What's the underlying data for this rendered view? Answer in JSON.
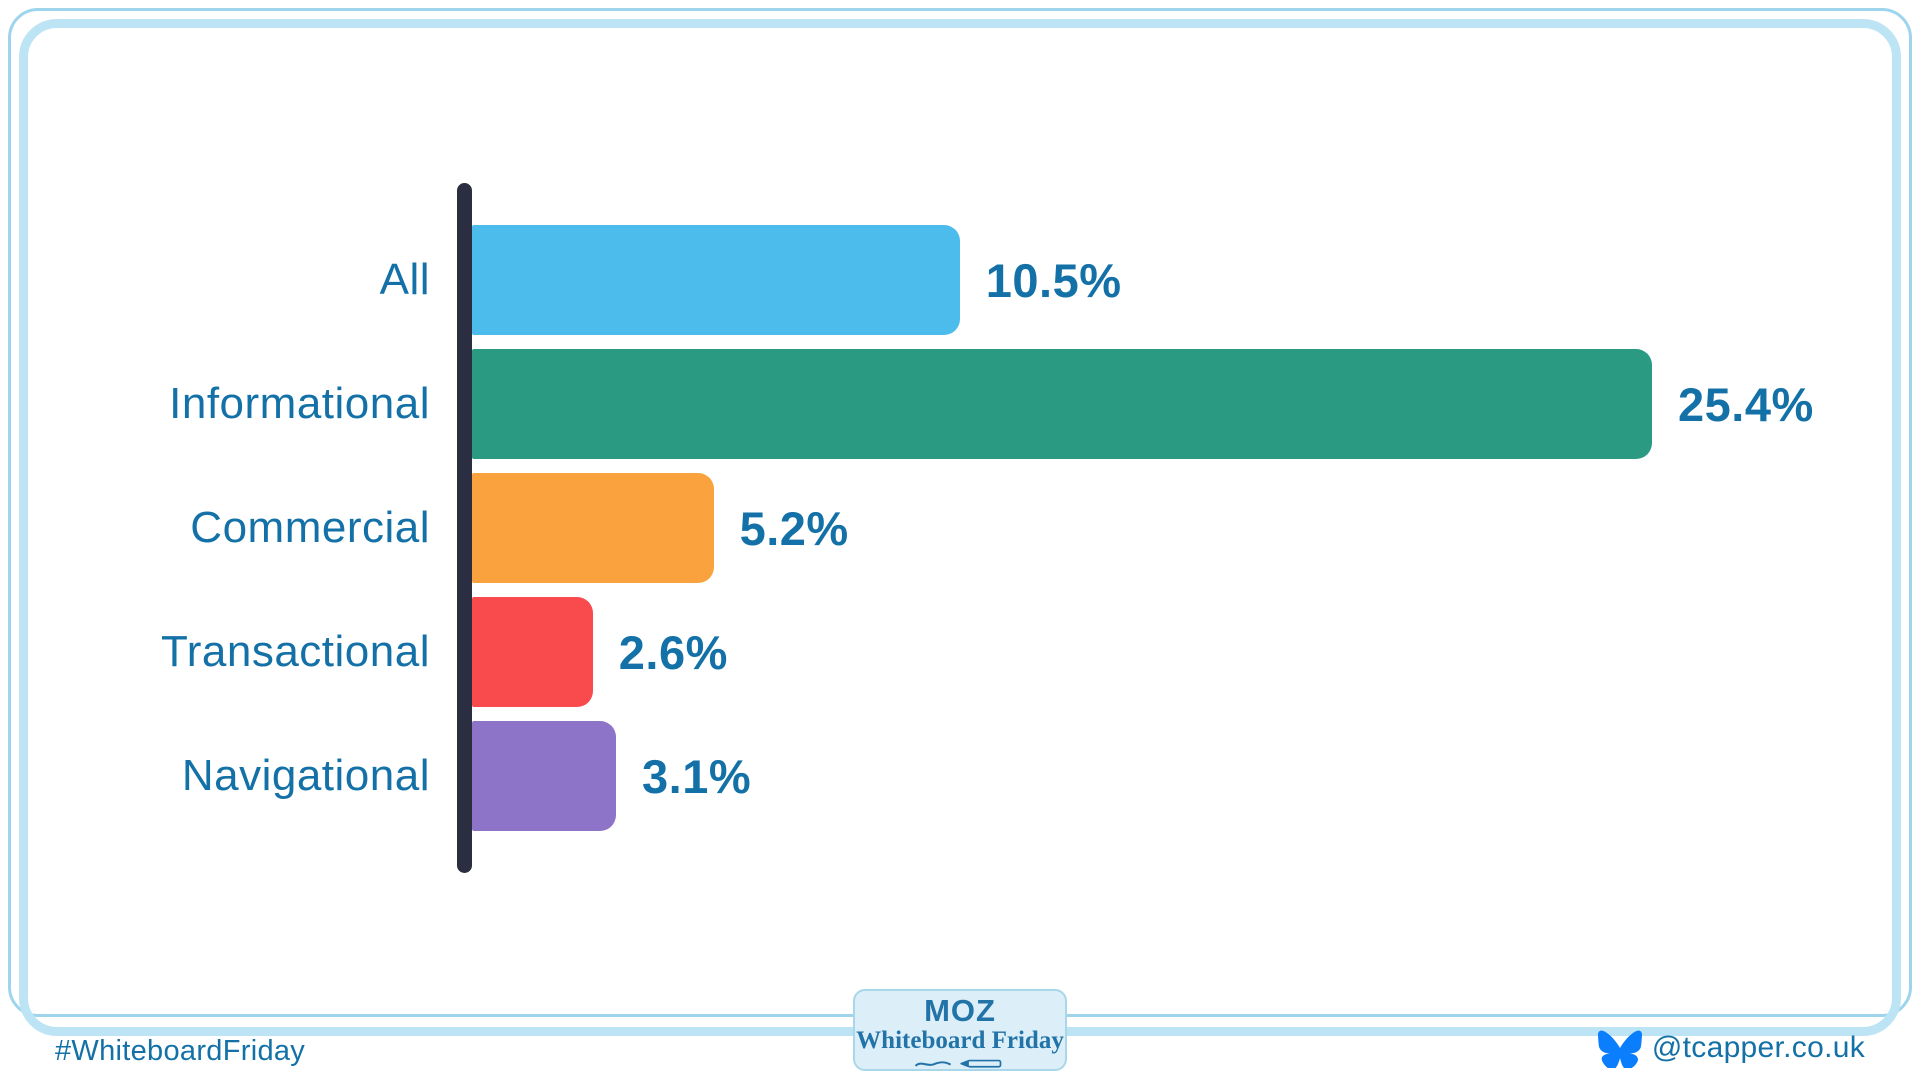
{
  "chart_data": {
    "type": "bar",
    "orientation": "horizontal",
    "title": "",
    "xlabel": "",
    "ylabel": "",
    "categories": [
      "All",
      "Informational",
      "Commercial",
      "Transactional",
      "Navigational"
    ],
    "values": [
      10.5,
      25.4,
      5.2,
      2.6,
      3.1
    ],
    "value_labels": [
      "10.5%",
      "25.4%",
      "5.2%",
      "2.6%",
      "3.1%"
    ],
    "bar_colors": [
      "#4cbcec",
      "#2a9a83",
      "#f9a23e",
      "#f94a4e",
      "#8d74c9"
    ],
    "xlim": [
      0,
      25.4
    ],
    "grid": false,
    "legend": false,
    "axis_color": "#2a2e40",
    "label_color": "#1371a7"
  },
  "frame": {
    "outer_color": "#9ed5ec",
    "inner_color": "#bce4f5"
  },
  "footer": {
    "hashtag": "#WhiteboardFriday",
    "handle": "@tcapper.co.uk",
    "text_color": "#1371a7",
    "bluesky_color": "#0b7efe"
  },
  "badge": {
    "brand": "MOZ",
    "series": "Whiteboard Friday",
    "bg": "#dceef8",
    "border": "#a9d7ea",
    "text_color": "#2273a8"
  }
}
